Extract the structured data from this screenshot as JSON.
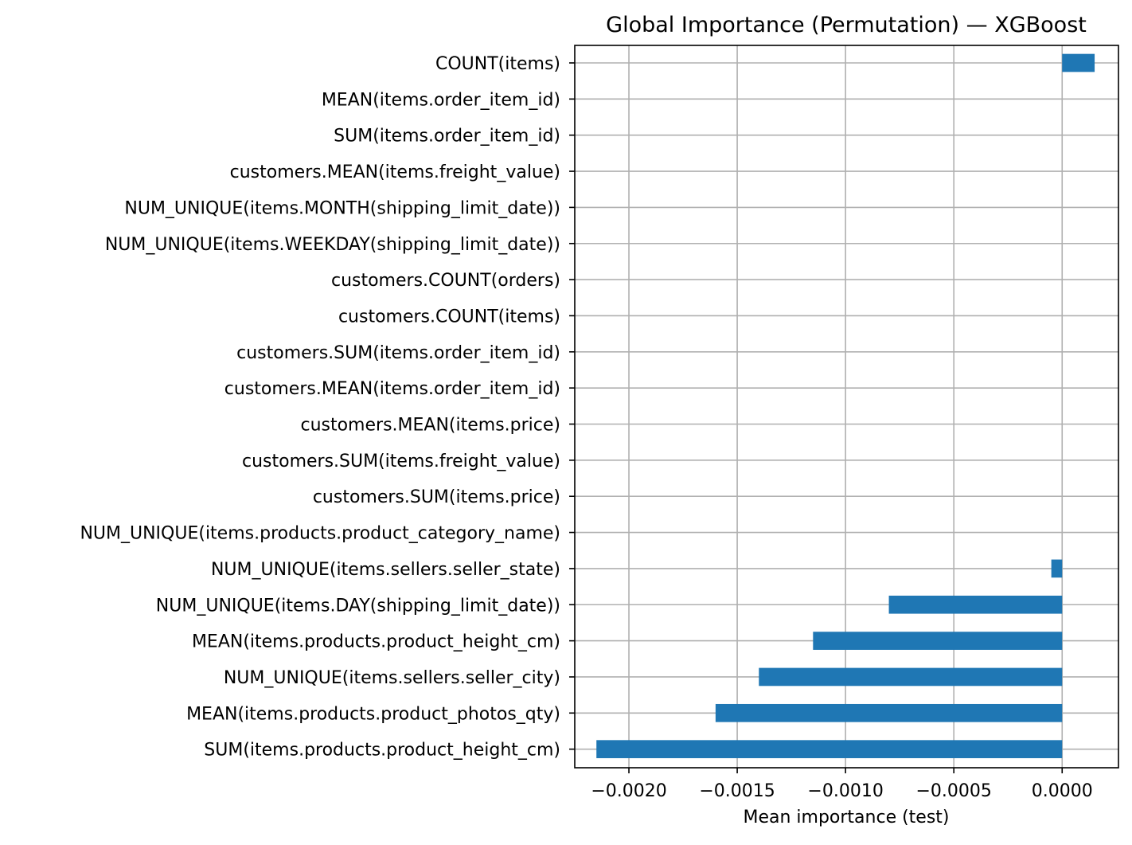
{
  "chart_data": {
    "type": "bar",
    "orientation": "horizontal",
    "title": "Global Importance (Permutation) — XGBoost",
    "xlabel": "Mean importance (test)",
    "ylabel": "",
    "xlim": [
      -0.00225,
      0.00026
    ],
    "grid": true,
    "legend": "none",
    "bar_color": "#1f77b4",
    "x_ticks": [
      -0.002,
      -0.0015,
      -0.001,
      -0.0005,
      0.0
    ],
    "x_tick_labels": [
      "−0.0020",
      "−0.0015",
      "−0.0010",
      "−0.0005",
      "0.0000"
    ],
    "categories": [
      "COUNT(items)",
      "MEAN(items.order_item_id)",
      "SUM(items.order_item_id)",
      "customers.MEAN(items.freight_value)",
      "NUM_UNIQUE(items.MONTH(shipping_limit_date))",
      "NUM_UNIQUE(items.WEEKDAY(shipping_limit_date))",
      "customers.COUNT(orders)",
      "customers.COUNT(items)",
      "customers.SUM(items.order_item_id)",
      "customers.MEAN(items.order_item_id)",
      "customers.MEAN(items.price)",
      "customers.SUM(items.freight_value)",
      "customers.SUM(items.price)",
      "NUM_UNIQUE(items.products.product_category_name)",
      "NUM_UNIQUE(items.sellers.seller_state)",
      "NUM_UNIQUE(items.DAY(shipping_limit_date))",
      "MEAN(items.products.product_height_cm)",
      "NUM_UNIQUE(items.sellers.seller_city)",
      "MEAN(items.products.product_photos_qty)",
      "SUM(items.products.product_height_cm)"
    ],
    "values": [
      0.00015,
      0.0,
      0.0,
      0.0,
      0.0,
      0.0,
      0.0,
      0.0,
      0.0,
      0.0,
      0.0,
      0.0,
      0.0,
      0.0,
      -5e-05,
      -0.0008,
      -0.00115,
      -0.0014,
      -0.0016,
      -0.00215
    ]
  }
}
